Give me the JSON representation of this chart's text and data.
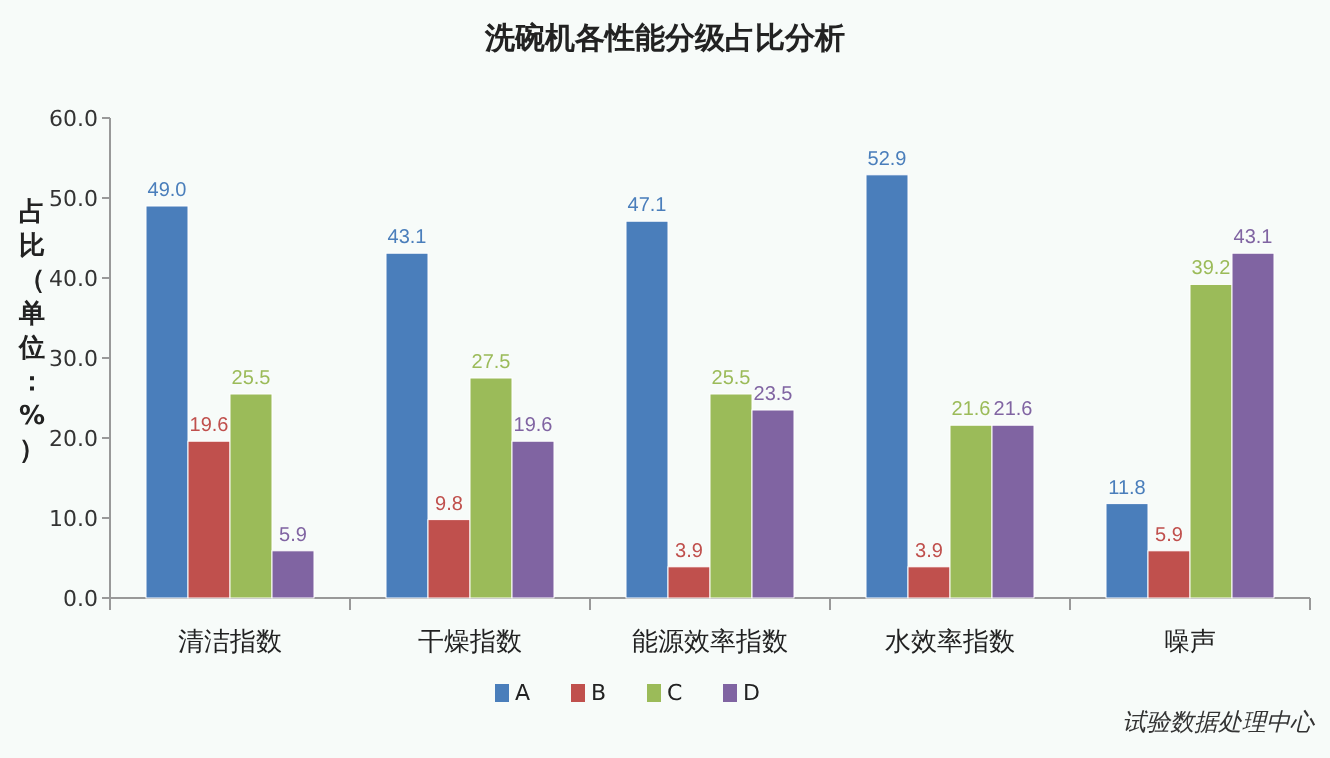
{
  "chart_data": {
    "type": "bar",
    "title": "洗碗机各性能分级占比分析",
    "ylabel": "占比（单位：%）",
    "categories": [
      "清洁指数",
      "干燥指数",
      "能源效率指数",
      "水效率指数",
      "噪声"
    ],
    "series": [
      {
        "name": "A",
        "color": "#4a7ebb",
        "values": [
          49.0,
          43.1,
          47.1,
          52.9,
          11.8
        ]
      },
      {
        "name": "B",
        "color": "#c0504d",
        "values": [
          19.6,
          9.8,
          3.9,
          3.9,
          5.9
        ]
      },
      {
        "name": "C",
        "color": "#9bbb59",
        "values": [
          25.5,
          27.5,
          25.5,
          21.6,
          39.2
        ]
      },
      {
        "name": "D",
        "color": "#8064a2",
        "values": [
          5.9,
          19.6,
          23.5,
          21.6,
          43.1
        ]
      }
    ],
    "ylim": [
      0,
      60
    ],
    "yticks": [
      {
        "value": 0,
        "label": "0.0"
      },
      {
        "value": 10,
        "label": "10.0"
      },
      {
        "value": 20,
        "label": "20.0"
      },
      {
        "value": 30,
        "label": "30.0"
      },
      {
        "value": 40,
        "label": "40.0"
      },
      {
        "value": 50,
        "label": "50.0"
      },
      {
        "value": 60,
        "label": "60.0"
      }
    ],
    "value_labels": [
      [
        "49.0",
        "43.1",
        "47.1",
        "52.9",
        "11.8"
      ],
      [
        "19.6",
        "9.8",
        "3.9",
        "3.9",
        "5.9"
      ],
      [
        "25.5",
        "27.5",
        "25.5",
        "21.6",
        "39.2"
      ],
      [
        "5.9",
        "19.6",
        "23.5",
        "21.6",
        "43.1"
      ]
    ],
    "grid": false,
    "legend": "bottom",
    "annotations": [
      "试验数据处理中心"
    ]
  }
}
